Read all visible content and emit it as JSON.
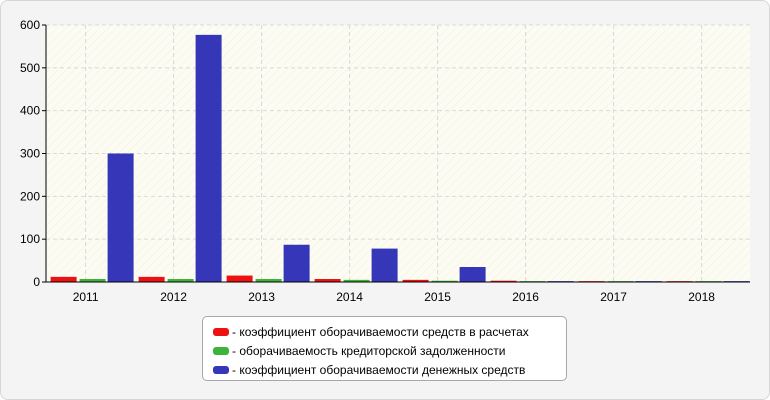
{
  "chart_data": {
    "type": "bar",
    "categories": [
      "2011",
      "2012",
      "2013",
      "2014",
      "2015",
      "2016",
      "2017",
      "2018"
    ],
    "series": [
      {
        "name": "- коэффициент оборачиваемости средств в расчетах",
        "color": "#ee1111",
        "values": [
          12,
          12,
          15,
          7,
          5,
          3,
          2,
          2
        ]
      },
      {
        "name": "- оборачиваемость кредиторской задолженности",
        "color": "#3cb43c",
        "values": [
          7,
          7,
          7,
          5,
          3,
          2,
          2,
          2
        ]
      },
      {
        "name": "- коэффициент оборачиваемости денежных средств",
        "color": "#3636b8",
        "values": [
          300,
          577,
          87,
          78,
          35,
          2,
          2,
          2
        ]
      }
    ],
    "ylim": [
      0,
      600
    ],
    "yticks": [
      0,
      100,
      200,
      300,
      400,
      500,
      600
    ],
    "title": "",
    "xlabel": "",
    "ylabel": "",
    "grid": true,
    "legend_position": "bottom-center"
  }
}
